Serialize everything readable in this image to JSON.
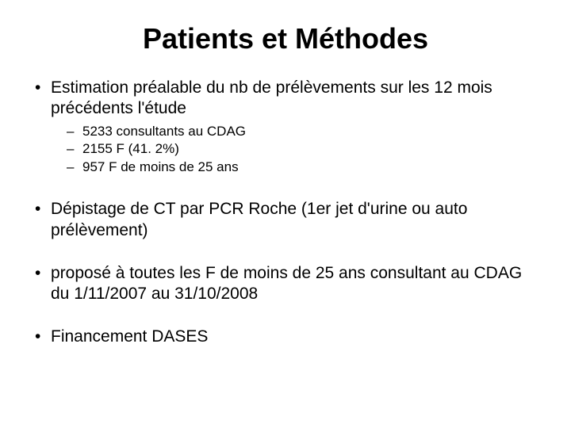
{
  "slide": {
    "title": "Patients et Méthodes",
    "title_fontsize": 36,
    "title_color": "#000000",
    "background_color": "#ffffff",
    "text_color": "#000000",
    "body_fontsize": 21,
    "sub_fontsize": 17,
    "bullets": [
      {
        "text": "Estimation préalable du nb de prélèvements sur les 12 mois précédents l'étude",
        "sub": [
          "5233 consultants au CDAG",
          "2155 F  (41. 2%)",
          "957 F de moins de 25 ans"
        ]
      },
      {
        "text": "Dépistage de CT par PCR Roche (1er jet d'urine ou auto prélèvement)",
        "sub": []
      },
      {
        "text": "proposé  à toutes les F de moins de 25 ans consultant au CDAG  du 1/11/2007 au 31/10/2008",
        "sub": []
      },
      {
        "text": "Financement DASES",
        "sub": []
      }
    ]
  }
}
